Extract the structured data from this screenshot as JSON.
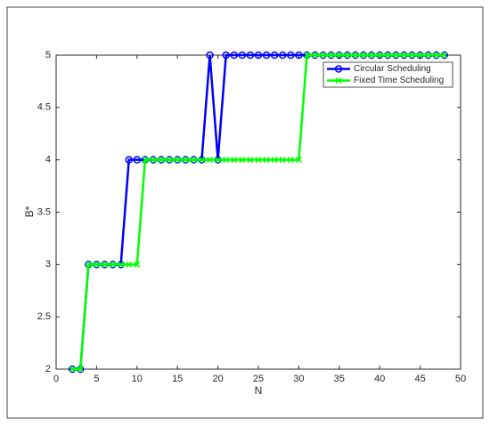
{
  "chart_data": {
    "type": "line",
    "x_label": "N",
    "y_label": "B*",
    "x": [
      2,
      3,
      4,
      5,
      6,
      7,
      8,
      9,
      10,
      11,
      12,
      13,
      14,
      15,
      16,
      17,
      18,
      19,
      20,
      21,
      22,
      23,
      24,
      25,
      26,
      27,
      28,
      29,
      30,
      31,
      32,
      33,
      34,
      35,
      36,
      37,
      38,
      39,
      40,
      41,
      42,
      43,
      44,
      45,
      46,
      47,
      48
    ],
    "series": [
      {
        "name": "Circular Scheduling",
        "color": "#0000ff",
        "marker": "circle",
        "values": [
          2,
          2,
          3,
          3,
          3,
          3,
          3,
          4,
          4,
          4,
          4,
          4,
          4,
          4,
          4,
          4,
          4,
          5,
          4,
          5,
          5,
          5,
          5,
          5,
          5,
          5,
          5,
          5,
          5,
          5,
          5,
          5,
          5,
          5,
          5,
          5,
          5,
          5,
          5,
          5,
          5,
          5,
          5,
          5,
          5,
          5,
          5
        ]
      },
      {
        "name": "Fixed Time Scheduling",
        "color": "#00ff00",
        "marker": "x",
        "values": [
          2,
          2,
          3,
          3,
          3,
          3,
          3,
          3,
          3,
          4,
          4,
          4,
          4,
          4,
          4,
          4,
          4,
          4,
          4,
          4,
          4,
          4,
          4,
          4,
          4,
          4,
          4,
          4,
          4,
          5,
          5,
          5,
          5,
          5,
          5,
          5,
          5,
          5,
          5,
          5,
          5,
          5,
          5,
          5,
          5,
          5,
          5
        ]
      }
    ],
    "xlim": [
      0,
      50
    ],
    "xticks": [
      0,
      5,
      10,
      15,
      20,
      25,
      30,
      35,
      40,
      45,
      50
    ],
    "ylim": [
      2,
      5
    ],
    "yticks": [
      2,
      2.5,
      3,
      3.5,
      4,
      4.5,
      5
    ],
    "grid": false,
    "legend": "upper right"
  }
}
